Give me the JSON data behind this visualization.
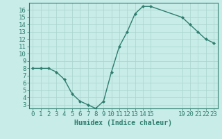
{
  "x": [
    0,
    1,
    2,
    3,
    4,
    5,
    6,
    7,
    8,
    9,
    10,
    11,
    12,
    13,
    14,
    15,
    19,
    20,
    21,
    22,
    23
  ],
  "y": [
    8,
    8,
    8,
    7.5,
    6.5,
    4.5,
    3.5,
    3.0,
    2.5,
    3.5,
    7.5,
    11,
    13,
    15.5,
    16.5,
    16.5,
    15,
    14,
    13,
    12,
    11.5
  ],
  "line_color": "#2e7d6e",
  "marker": "D",
  "marker_size": 2,
  "bg_color": "#c8ece8",
  "grid_color": "#aad4ce",
  "tick_color": "#2e7d6e",
  "xlabel": "Humidex (Indice chaleur)",
  "xlim": [
    -0.5,
    23.5
  ],
  "ylim": [
    2.5,
    17
  ],
  "yticks": [
    3,
    4,
    5,
    6,
    7,
    8,
    9,
    10,
    11,
    12,
    13,
    14,
    15,
    16
  ],
  "xticks": [
    0,
    1,
    2,
    3,
    4,
    5,
    6,
    7,
    8,
    9,
    10,
    11,
    12,
    13,
    14,
    15,
    19,
    20,
    21,
    22,
    23
  ],
  "xlabel_fontsize": 7,
  "tick_fontsize": 6.5,
  "linewidth": 1.0
}
